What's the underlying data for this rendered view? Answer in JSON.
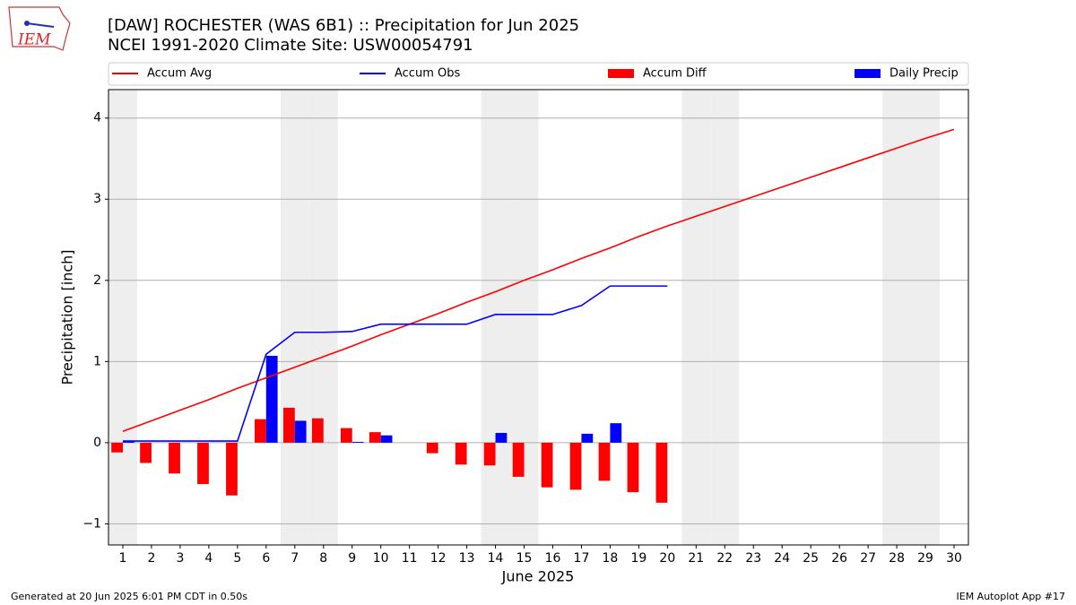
{
  "chart_data": {
    "type": "bar",
    "title": "[DAW] ROCHESTER (WAS 6B1) :: Precipitation for Jun 2025",
    "subtitle": "NCEI 1991-2020 Climate Site: USW00054791",
    "x_label": "June 2025",
    "y_label": "Precipitation [inch]",
    "logo_text": "IEM",
    "footer_left": "Generated at 20 Jun 2025 6:01 PM CDT in 0.50s",
    "footer_right": "IEM Autoplot App #17",
    "x": [
      1,
      2,
      3,
      4,
      5,
      6,
      7,
      8,
      9,
      10,
      11,
      12,
      13,
      14,
      15,
      16,
      17,
      18,
      19,
      20,
      21,
      22,
      23,
      24,
      25,
      26,
      27,
      28,
      29,
      30
    ],
    "xlim": [
      0.5,
      30.5
    ],
    "xticks": [
      1,
      2,
      3,
      4,
      5,
      6,
      7,
      8,
      9,
      10,
      11,
      12,
      13,
      14,
      15,
      16,
      17,
      18,
      19,
      20,
      21,
      22,
      23,
      24,
      25,
      26,
      27,
      28,
      29,
      30
    ],
    "ylim": [
      -1.26,
      4.35
    ],
    "yticks": [
      {
        "value": -1,
        "label": "−1"
      },
      0,
      1,
      2,
      3,
      4
    ],
    "grid": true,
    "legend": "top",
    "shaded_days": [
      1,
      7,
      8,
      14,
      15,
      21,
      22,
      28,
      29
    ],
    "series": [
      {
        "name": "Accum Avg",
        "type": "line",
        "color": "#ff0000",
        "values": [
          0.14,
          0.27,
          0.4,
          0.53,
          0.67,
          0.8,
          0.93,
          1.06,
          1.19,
          1.33,
          1.46,
          1.59,
          1.73,
          1.86,
          2.0,
          2.13,
          2.27,
          2.4,
          2.54,
          2.67,
          2.79,
          2.91,
          3.03,
          3.15,
          3.27,
          3.39,
          3.51,
          3.63,
          3.75,
          3.86
        ]
      },
      {
        "name": "Accum Obs",
        "type": "line",
        "color": "#0000ff",
        "values": [
          0.02,
          0.02,
          0.02,
          0.02,
          0.02,
          1.09,
          1.36,
          1.36,
          1.37,
          1.46,
          1.46,
          1.46,
          1.46,
          1.58,
          1.58,
          1.58,
          1.69,
          1.93,
          1.93,
          1.93,
          null,
          null,
          null,
          null,
          null,
          null,
          null,
          null,
          null,
          null
        ]
      },
      {
        "name": "Accum Diff",
        "type": "bar",
        "color": "#ff0000",
        "values": [
          -0.12,
          -0.25,
          -0.38,
          -0.51,
          -0.65,
          0.29,
          0.43,
          0.3,
          0.18,
          0.13,
          0.0,
          -0.13,
          -0.27,
          -0.28,
          -0.42,
          -0.55,
          -0.58,
          -0.47,
          -0.61,
          -0.74,
          null,
          null,
          null,
          null,
          null,
          null,
          null,
          null,
          null,
          null
        ]
      },
      {
        "name": "Daily Precip",
        "type": "bar",
        "color": "#0000ff",
        "values": [
          0.02,
          0,
          0,
          0,
          0,
          1.07,
          0.27,
          0,
          0.01,
          0.09,
          0,
          0,
          0,
          0.12,
          0,
          0,
          0.11,
          0.24,
          0,
          0,
          null,
          null,
          null,
          null,
          null,
          null,
          null,
          null,
          null,
          null
        ]
      }
    ]
  }
}
